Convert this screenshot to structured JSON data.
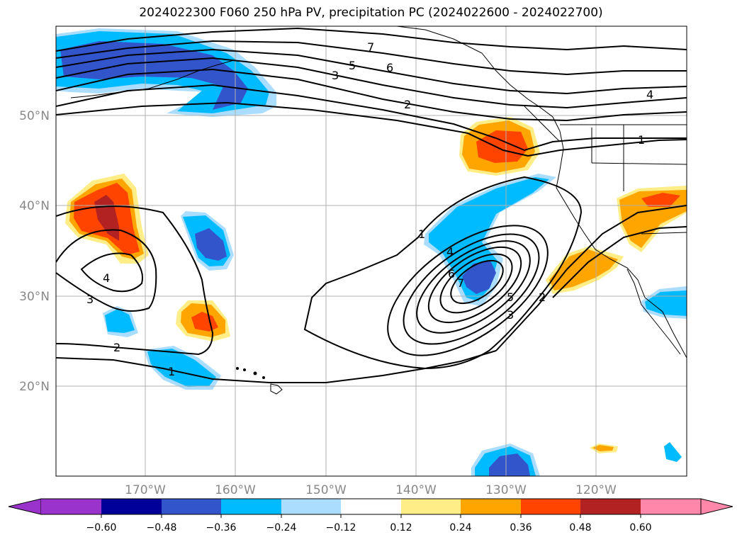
{
  "title": "2024022300 F060 250 hPa PV, precipitation PC (2024022600 - 2024022700)",
  "map": {
    "lat_labels": [
      "50°N",
      "40°N",
      "30°N",
      "20°N"
    ],
    "lon_labels": [
      "170°W",
      "160°W",
      "150°W",
      "140°W",
      "130°W",
      "120°W"
    ],
    "pv_contour_levels": [
      "1",
      "2",
      "3",
      "4",
      "5",
      "6",
      "7"
    ]
  },
  "colorbar": {
    "tick_labels": [
      "−0.60",
      "−0.48",
      "−0.36",
      "−0.24",
      "−0.12",
      "0.12",
      "0.24",
      "0.36",
      "0.48",
      "0.60"
    ],
    "colors": [
      "#9933cc",
      "#000099",
      "#3355cc",
      "#00bbff",
      "#aaddff",
      "#ffffff",
      "#ffee88",
      "#ffa500",
      "#ff4400",
      "#b22222",
      "#ff88aa"
    ],
    "extend": "both"
  },
  "contour_labels": {
    "c7a": "7",
    "c6a": "6",
    "c5a": "5",
    "c3a": "3",
    "c2a": "2",
    "c4a": "4",
    "c1a": "1",
    "c1b": "1",
    "c4b": "4",
    "c6b": "6",
    "c7b": "7",
    "c5b": "5",
    "c3b": "3",
    "c2b": "2",
    "c4c": "4",
    "c3c": "3",
    "c2c": "2",
    "c1c": "1"
  }
}
